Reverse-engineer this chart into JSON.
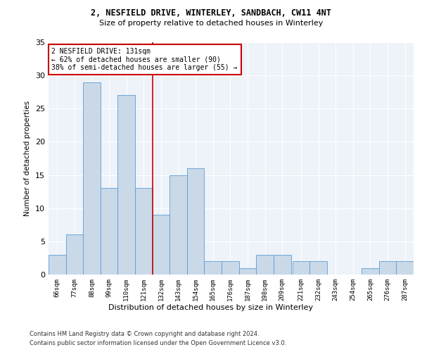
{
  "title1": "2, NESFIELD DRIVE, WINTERLEY, SANDBACH, CW11 4NT",
  "title2": "Size of property relative to detached houses in Winterley",
  "xlabel": "Distribution of detached houses by size in Winterley",
  "ylabel": "Number of detached properties",
  "footer1": "Contains HM Land Registry data © Crown copyright and database right 2024.",
  "footer2": "Contains public sector information licensed under the Open Government Licence v3.0.",
  "annotation_line1": "2 NESFIELD DRIVE: 131sqm",
  "annotation_line2": "← 62% of detached houses are smaller (90)",
  "annotation_line3": "38% of semi-detached houses are larger (55) →",
  "property_size": 131,
  "bar_color": "#c9d9e8",
  "bar_edge_color": "#5b9bd5",
  "highlight_line_color": "#cc0000",
  "annotation_box_color": "#cc0000",
  "background_color": "#eef2f9",
  "grid_color": "#ffffff",
  "categories": [
    "66sqm",
    "77sqm",
    "88sqm",
    "99sqm",
    "110sqm",
    "121sqm",
    "132sqm",
    "143sqm",
    "154sqm",
    "165sqm",
    "176sqm",
    "187sqm",
    "198sqm",
    "209sqm",
    "221sqm",
    "232sqm",
    "243sqm",
    "254sqm",
    "265sqm",
    "276sqm",
    "287sqm"
  ],
  "values": [
    3,
    6,
    29,
    13,
    27,
    13,
    9,
    15,
    16,
    2,
    2,
    1,
    3,
    3,
    2,
    2,
    0,
    0,
    1,
    2,
    2
  ],
  "bin_edges": [
    66,
    77,
    88,
    99,
    110,
    121,
    132,
    143,
    154,
    165,
    176,
    187,
    198,
    209,
    221,
    232,
    243,
    254,
    265,
    276,
    287,
    298
  ],
  "ylim": [
    0,
    35
  ],
  "yticks": [
    0,
    5,
    10,
    15,
    20,
    25,
    30,
    35
  ]
}
